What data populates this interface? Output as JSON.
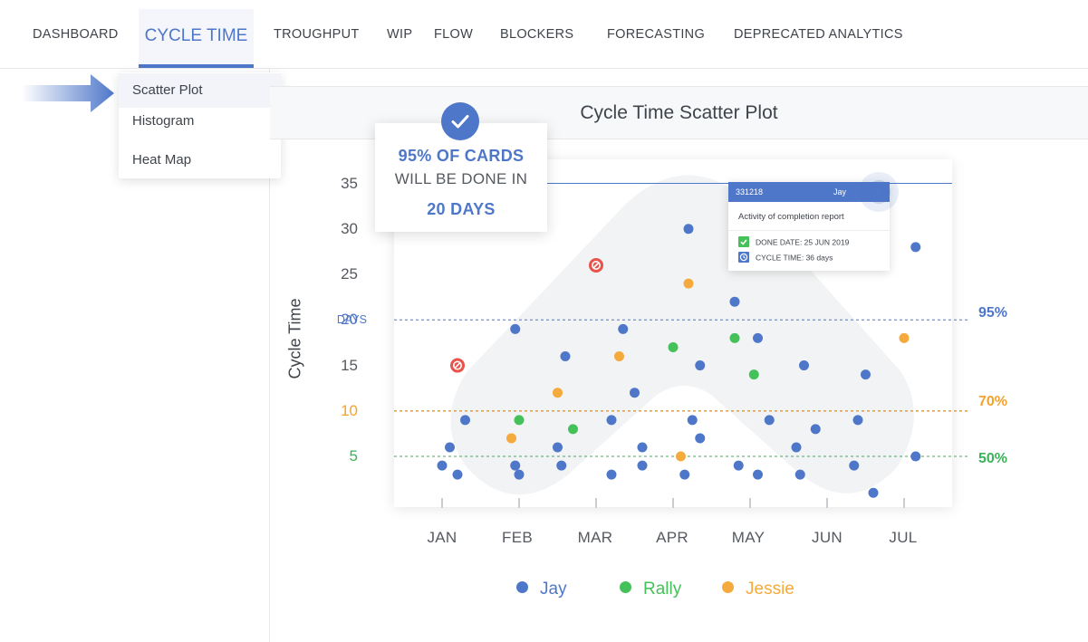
{
  "nav": {
    "items": [
      "DASHBOARD",
      "CYCLE TIME",
      "TROUGHPUT",
      "WIP",
      "FLOW",
      "BLOCKERS",
      "FORECASTING",
      "DEPRECATED ANALYTICS"
    ],
    "active": "CYCLE TIME"
  },
  "dropdown": {
    "items": [
      "Scatter Plot",
      "Histogram",
      "Heat Map"
    ],
    "selected": "Scatter Plot"
  },
  "callout": {
    "line1": "95% OF CARDS",
    "line2": "WILL BE DONE IN",
    "line3": "20 DAYS"
  },
  "tooltip": {
    "card_id": "331218",
    "user": "Jay",
    "title": "Activity of completion report",
    "done_date": "DONE DATE: 25 JUN 2019",
    "cycle_time": "CYCLE TIME: 36 days"
  },
  "colors": {
    "accent": "#4e77c9",
    "jay": "#4e77c9",
    "rally": "#45c15a",
    "jessie": "#f4aa3d",
    "blocked": "#e8534a",
    "p95": "#4e77c9",
    "p70": "#f4a32b",
    "p50": "#3bb25a"
  },
  "chart_data": {
    "type": "scatter",
    "title": "Cycle Time Scatter Plot",
    "ylabel": "Cycle Time",
    "xlabel": "",
    "categories": [
      "JAN",
      "FEB",
      "MAR",
      "APR",
      "MAY",
      "JUN",
      "JUL"
    ],
    "y_ticks": [
      {
        "value": 35,
        "label": "35"
      },
      {
        "value": 30,
        "label": "30"
      },
      {
        "value": 25,
        "label": "25"
      },
      {
        "value": 20,
        "label": "20",
        "sublabel": "DAYS"
      },
      {
        "value": 15,
        "label": "15"
      },
      {
        "value": 10,
        "label": "10"
      },
      {
        "value": 5,
        "label": "5"
      }
    ],
    "percentiles": [
      {
        "label": "95%",
        "value": 20
      },
      {
        "label": "70%",
        "value": 10
      },
      {
        "label": "50%",
        "value": 5
      }
    ],
    "max_line": 35,
    "ylim": [
      0,
      37
    ],
    "xlim": [
      0.5,
      7.2
    ],
    "legend_position": "bottom",
    "series": [
      {
        "name": "Jay",
        "points": [
          [
            1.0,
            4
          ],
          [
            1.1,
            6
          ],
          [
            1.2,
            3
          ],
          [
            1.3,
            9
          ],
          [
            1.95,
            4
          ],
          [
            1.95,
            19
          ],
          [
            2.0,
            3
          ],
          [
            2.5,
            6
          ],
          [
            2.6,
            16
          ],
          [
            2.55,
            4
          ],
          [
            3.2,
            9
          ],
          [
            3.2,
            3
          ],
          [
            3.35,
            19
          ],
          [
            3.5,
            12
          ],
          [
            3.6,
            4
          ],
          [
            3.6,
            6
          ],
          [
            4.15,
            3
          ],
          [
            4.2,
            30
          ],
          [
            4.25,
            9
          ],
          [
            4.35,
            15
          ],
          [
            4.35,
            7
          ],
          [
            4.85,
            4
          ],
          [
            4.8,
            22
          ],
          [
            5.1,
            18
          ],
          [
            5.1,
            3
          ],
          [
            5.25,
            9
          ],
          [
            5.6,
            6
          ],
          [
            5.65,
            3
          ],
          [
            5.7,
            15
          ],
          [
            5.85,
            8
          ],
          [
            6.35,
            4
          ],
          [
            6.4,
            9
          ],
          [
            6.5,
            14
          ],
          [
            6.6,
            1
          ],
          [
            7.15,
            5
          ],
          [
            7.15,
            28
          ]
        ]
      },
      {
        "name": "Rally",
        "points": [
          [
            2.0,
            9
          ],
          [
            2.7,
            8
          ],
          [
            4.0,
            17
          ],
          [
            4.8,
            18
          ],
          [
            5.05,
            14
          ]
        ]
      },
      {
        "name": "Jessie",
        "points": [
          [
            1.9,
            7
          ],
          [
            2.5,
            12
          ],
          [
            3.3,
            16
          ],
          [
            4.1,
            5
          ],
          [
            4.2,
            24
          ],
          [
            7.0,
            18
          ]
        ]
      },
      {
        "name": "Blocked",
        "points": [
          [
            1.2,
            15
          ],
          [
            3.0,
            26
          ]
        ]
      }
    ]
  }
}
